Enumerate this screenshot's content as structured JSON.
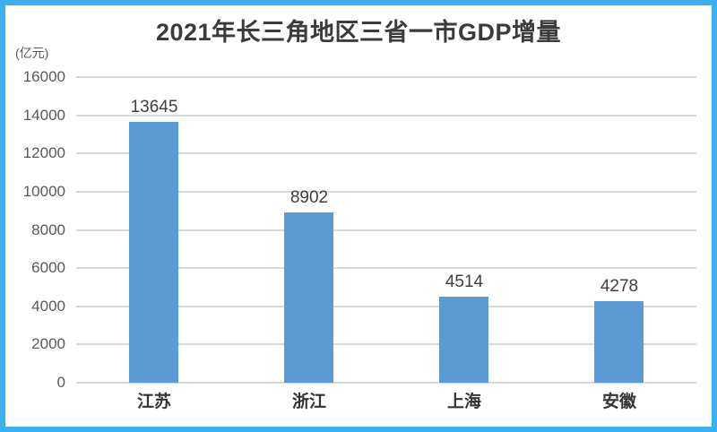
{
  "chart_data": {
    "type": "bar",
    "title": "2021年长三角地区三省一市GDP增量",
    "unit_label": "(亿元)",
    "categories": [
      "江苏",
      "浙江",
      "上海",
      "安徽"
    ],
    "values": [
      13645,
      8902,
      4514,
      4278
    ],
    "xlabel": "",
    "ylabel": "(亿元)",
    "ylim": [
      0,
      16000
    ],
    "ytick_step": 2000,
    "yticks": [
      0,
      2000,
      4000,
      6000,
      8000,
      10000,
      12000,
      14000,
      16000
    ],
    "grid": true,
    "legend": "none",
    "bar_color": "#5b9bd5"
  },
  "colors": {
    "background": "#ffffff",
    "frame_border": "#3ab0f0",
    "gridline": "#d9d9d9",
    "title_text": "#3b3b3b",
    "tick_text": "#595959",
    "value_text": "#404040",
    "category_text": "#333333"
  }
}
